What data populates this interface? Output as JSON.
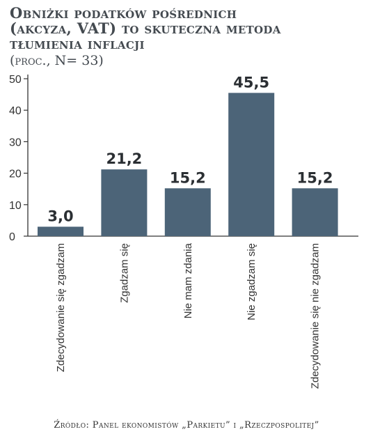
{
  "chart_data": {
    "type": "bar",
    "title": [
      "Obniżki podatków pośrednich",
      "(akcyza, VAT) to skuteczna metoda",
      "tłumienia inflacji"
    ],
    "subtitle": "(proc., N= 33)",
    "categories": [
      "Zdecydowanie się zgadzam",
      "Zgadzam się",
      "Nie mam zdania",
      "Nie zgadzam się",
      "Zdecydowanie się nie zgadzam"
    ],
    "values": [
      3.0,
      21.2,
      15.2,
      45.5,
      15.2
    ],
    "value_labels": [
      "3,0",
      "21,2",
      "15,2",
      "45,5",
      "15,2"
    ],
    "yticks": [
      0,
      10,
      20,
      30,
      40,
      50
    ],
    "ylim": [
      0,
      50
    ],
    "bar_color": "#4c6478",
    "grid": false,
    "source": "Źródło: Panel ekonomistów „Parkietu” i „Rzeczpospolitej”"
  }
}
